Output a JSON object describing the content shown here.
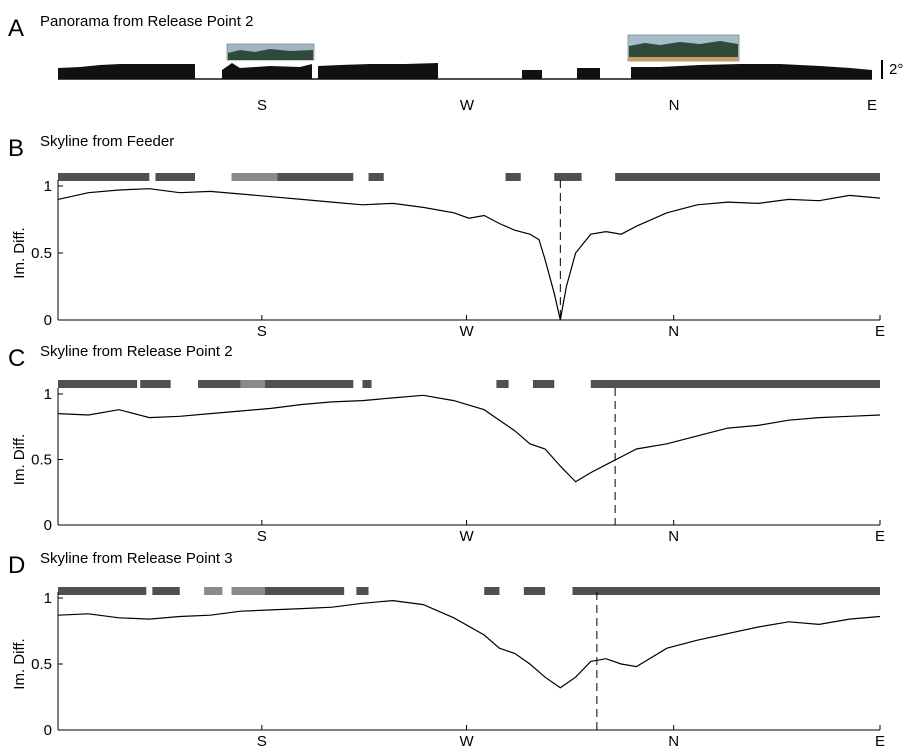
{
  "colors": {
    "curve": "#000000",
    "bar_dark": "#505050",
    "bar_light": "#8a8a8a",
    "skyline": "#111111"
  },
  "compass_labels": [
    "S",
    "W",
    "N",
    "E"
  ],
  "panel_a": {
    "label": "A",
    "title": "Panorama from Release Point 2",
    "scale_label": "2°",
    "photo_icons": [
      "forest-photo-icon",
      "forest-photo-icon"
    ]
  },
  "chart_data": [
    {
      "type": "line",
      "panel": "B",
      "title": "Skyline from Feeder",
      "ylabel": "Im. Diff.",
      "ylim": [
        0,
        1
      ],
      "yticks": [
        "0",
        "0.5",
        "1"
      ],
      "xticks": [
        "S",
        "W",
        "N",
        "E"
      ],
      "xlim": [
        -90,
        180
      ],
      "x": [
        -90,
        -80,
        -70,
        -60,
        -50,
        -40,
        -30,
        -20,
        -10,
        0,
        10,
        20,
        30,
        40,
        45,
        50,
        55,
        60,
        65,
        68,
        70,
        73,
        75,
        77,
        80,
        85,
        90,
        95,
        100,
        110,
        120,
        130,
        140,
        150,
        160,
        170,
        180
      ],
      "y": [
        0.9,
        0.95,
        0.97,
        0.98,
        0.95,
        0.96,
        0.94,
        0.92,
        0.9,
        0.88,
        0.86,
        0.87,
        0.84,
        0.8,
        0.76,
        0.78,
        0.72,
        0.67,
        0.64,
        0.6,
        0.45,
        0.2,
        0.0,
        0.25,
        0.5,
        0.64,
        0.66,
        0.64,
        0.7,
        0.8,
        0.86,
        0.88,
        0.87,
        0.9,
        0.89,
        0.93,
        0.91
      ],
      "marker_x": 75,
      "segments": [
        [
          -90,
          -60,
          "dark"
        ],
        [
          -58,
          -45,
          "dark"
        ],
        [
          -33,
          -18,
          "light"
        ],
        [
          -18,
          7,
          "dark"
        ],
        [
          12,
          17,
          "dark"
        ],
        [
          57,
          62,
          "dark"
        ],
        [
          73,
          82,
          "dark"
        ],
        [
          93,
          180,
          "dark"
        ]
      ]
    },
    {
      "type": "line",
      "panel": "C",
      "title": "Skyline from Release Point 2",
      "ylabel": "Im. Diff.",
      "ylim": [
        0,
        1
      ],
      "yticks": [
        "0",
        "0.5",
        "1"
      ],
      "xticks": [
        "S",
        "W",
        "N",
        "E"
      ],
      "xlim": [
        -90,
        180
      ],
      "x": [
        -90,
        -80,
        -70,
        -60,
        -50,
        -40,
        -30,
        -20,
        -10,
        0,
        10,
        20,
        30,
        40,
        50,
        55,
        60,
        65,
        70,
        75,
        80,
        85,
        90,
        95,
        100,
        110,
        120,
        130,
        140,
        150,
        160,
        170,
        180
      ],
      "y": [
        0.85,
        0.84,
        0.88,
        0.82,
        0.83,
        0.85,
        0.87,
        0.89,
        0.92,
        0.94,
        0.95,
        0.97,
        0.99,
        0.95,
        0.88,
        0.8,
        0.72,
        0.62,
        0.58,
        0.45,
        0.33,
        0.4,
        0.46,
        0.52,
        0.58,
        0.62,
        0.68,
        0.74,
        0.76,
        0.8,
        0.82,
        0.83,
        0.84
      ],
      "marker_x": 93,
      "segments": [
        [
          -90,
          -64,
          "dark"
        ],
        [
          -63,
          -53,
          "dark"
        ],
        [
          -44,
          -30,
          "dark"
        ],
        [
          -30,
          -22,
          "light"
        ],
        [
          -22,
          7,
          "dark"
        ],
        [
          10,
          13,
          "dark"
        ],
        [
          54,
          58,
          "dark"
        ],
        [
          66,
          73,
          "dark"
        ],
        [
          85,
          180,
          "dark"
        ]
      ]
    },
    {
      "type": "line",
      "panel": "D",
      "title": "Skyline from Release Point 3",
      "ylabel": "Im. Diff.",
      "ylim": [
        0,
        1
      ],
      "yticks": [
        "0",
        "0.5",
        "1"
      ],
      "xticks": [
        "S",
        "W",
        "N",
        "E"
      ],
      "xlim": [
        -90,
        180
      ],
      "x": [
        -90,
        -80,
        -70,
        -60,
        -50,
        -40,
        -30,
        -20,
        -10,
        0,
        10,
        20,
        30,
        40,
        50,
        55,
        60,
        65,
        70,
        75,
        80,
        85,
        90,
        95,
        100,
        110,
        120,
        130,
        140,
        150,
        160,
        170,
        180
      ],
      "y": [
        0.87,
        0.88,
        0.85,
        0.84,
        0.86,
        0.87,
        0.9,
        0.91,
        0.92,
        0.93,
        0.96,
        0.98,
        0.95,
        0.85,
        0.72,
        0.62,
        0.58,
        0.5,
        0.4,
        0.32,
        0.4,
        0.52,
        0.54,
        0.5,
        0.48,
        0.62,
        0.68,
        0.73,
        0.78,
        0.82,
        0.8,
        0.84,
        0.86
      ],
      "marker_x": 87,
      "segments": [
        [
          -90,
          -61,
          "dark"
        ],
        [
          -59,
          -50,
          "dark"
        ],
        [
          -42,
          -36,
          "light"
        ],
        [
          -33,
          -22,
          "light"
        ],
        [
          -22,
          4,
          "dark"
        ],
        [
          8,
          12,
          "dark"
        ],
        [
          50,
          55,
          "dark"
        ],
        [
          63,
          70,
          "dark"
        ],
        [
          79,
          180,
          "dark"
        ]
      ]
    }
  ]
}
